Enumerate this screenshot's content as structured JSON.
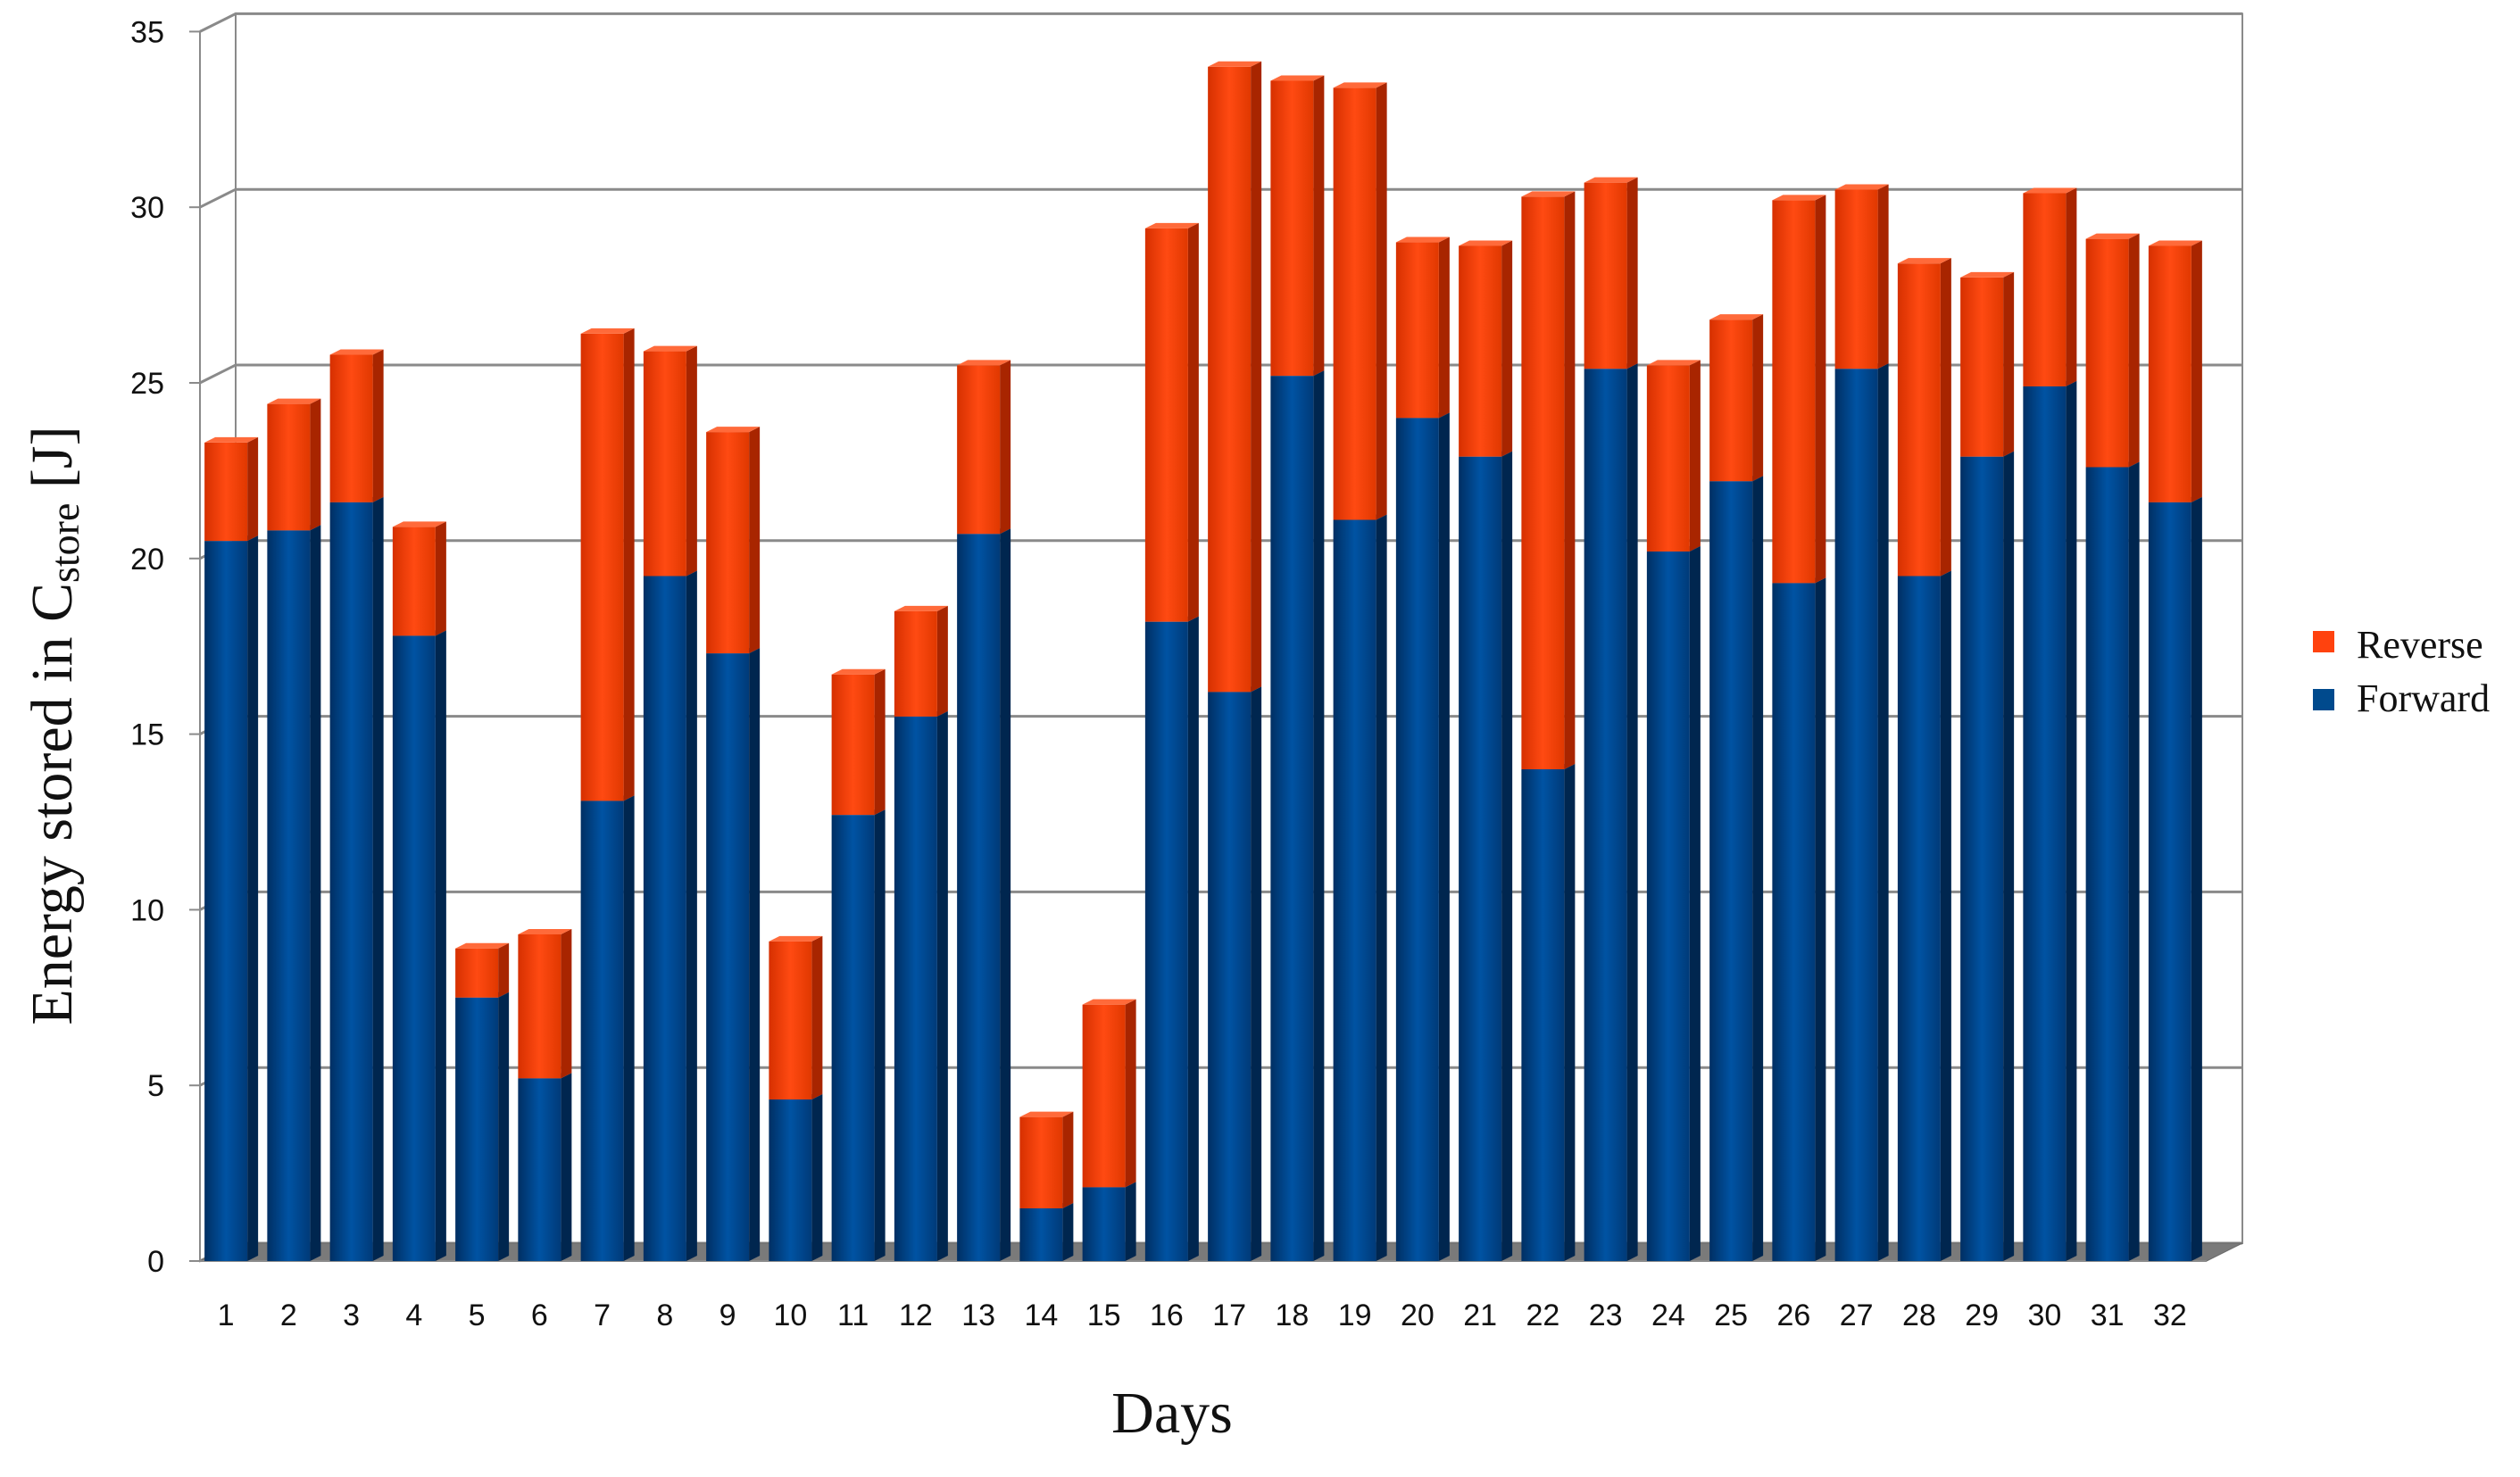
{
  "chart_data": {
    "type": "bar",
    "stacked": true,
    "three_d": true,
    "xlabel": "Days",
    "ylabel": "Energy stored in ",
    "ylabel_sub": "C",
    "ylabel_subscript": "store",
    "ylabel_unit": " [J]",
    "ylim": [
      0,
      35
    ],
    "yticks": [
      0,
      5,
      10,
      15,
      20,
      25,
      30,
      35
    ],
    "grid": true,
    "legend_position": "right",
    "categories": [
      "1",
      "2",
      "3",
      "4",
      "5",
      "6",
      "7",
      "8",
      "9",
      "10",
      "11",
      "12",
      "13",
      "14",
      "15",
      "16",
      "17",
      "18",
      "19",
      "20",
      "21",
      "22",
      "23",
      "24",
      "25",
      "26",
      "27",
      "28",
      "29",
      "30",
      "31",
      "32"
    ],
    "series": [
      {
        "name": "Forward",
        "color": "#004a8d",
        "values": [
          20.5,
          20.8,
          21.6,
          17.8,
          7.5,
          5.2,
          13.1,
          19.5,
          17.3,
          4.6,
          12.7,
          15.5,
          20.7,
          1.5,
          2.1,
          18.2,
          16.2,
          25.2,
          21.1,
          24.0,
          22.9,
          14.0,
          25.4,
          20.2,
          22.2,
          19.3,
          25.4,
          19.5,
          22.9,
          24.9,
          22.6,
          21.6
        ]
      },
      {
        "name": "Reverse",
        "color": "#ff420e",
        "values": [
          2.8,
          3.6,
          4.2,
          3.1,
          1.4,
          4.1,
          13.3,
          6.4,
          6.3,
          4.5,
          4.0,
          3.0,
          4.8,
          2.6,
          5.2,
          11.2,
          17.8,
          8.4,
          12.3,
          5.0,
          6.0,
          16.3,
          5.3,
          5.3,
          4.6,
          10.9,
          5.1,
          8.9,
          5.1,
          5.5,
          6.5,
          7.3
        ]
      }
    ]
  }
}
